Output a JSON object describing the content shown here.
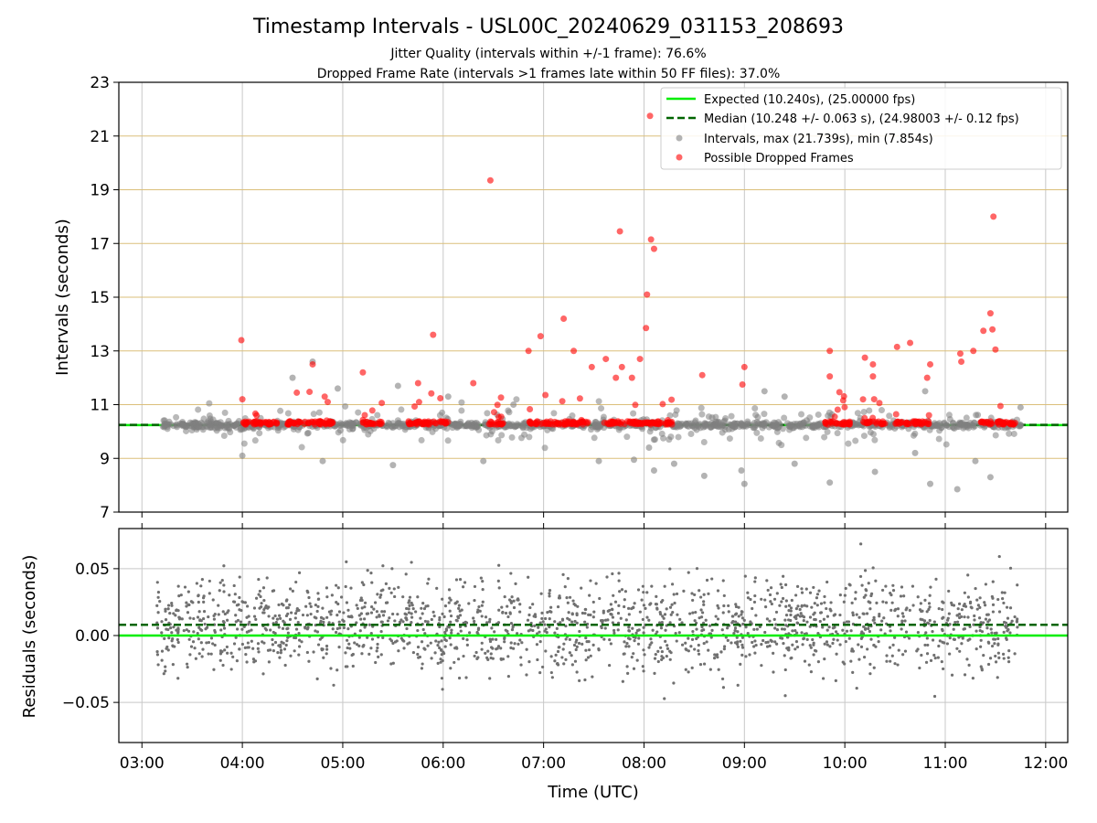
{
  "chart_data": [
    {
      "type": "scatter",
      "title": "Timestamp Intervals - USL00C_20240629_031153_208693",
      "subtitle_lines": [
        "Jitter Quality (intervals within +/-1 frame): 76.6%",
        "Dropped Frame Rate (intervals >1 frames late within 50 FF files): 37.0%"
      ],
      "ylabel": "Intervals (seconds)",
      "ylim": [
        7,
        23
      ],
      "yticks": [
        "7",
        "9",
        "11",
        "13",
        "15",
        "17",
        "19",
        "21",
        "23"
      ],
      "xlim_hours": [
        2.77,
        12.22
      ],
      "xticks": [
        "03:00",
        "04:00",
        "05:00",
        "06:00",
        "07:00",
        "08:00",
        "09:00",
        "10:00",
        "11:00",
        "12:00"
      ],
      "grid": true,
      "legend_position": "top-right",
      "legend": [
        "Expected (10.240s), (25.00000 fps)",
        "Median (10.248 +/- 0.063 s), (24.98003 +/- 0.12 fps)",
        "Intervals, max (21.739s), min (7.854s)",
        "Possible Dropped Frames"
      ],
      "colors": {
        "expected": "#00ee00",
        "median": "#006400",
        "intervals": "#808080",
        "dropped": "#ff0000",
        "hgrid": "#dbbf7a",
        "vgrid": "#c8c8c8"
      },
      "expected_value": 10.24,
      "median_value": 10.248,
      "time_range_hours": [
        3.2,
        11.77
      ],
      "dropped_frames": [
        {
          "x": 3.99,
          "y": 13.4
        },
        {
          "x": 4.0,
          "y": 11.2
        },
        {
          "x": 4.7,
          "y": 12.5
        },
        {
          "x": 4.82,
          "y": 11.3
        },
        {
          "x": 4.85,
          "y": 11.1
        },
        {
          "x": 5.2,
          "y": 12.2
        },
        {
          "x": 5.75,
          "y": 11.8
        },
        {
          "x": 5.9,
          "y": 13.6
        },
        {
          "x": 6.3,
          "y": 11.8
        },
        {
          "x": 6.47,
          "y": 19.35
        },
        {
          "x": 6.85,
          "y": 13.0
        },
        {
          "x": 6.97,
          "y": 13.55
        },
        {
          "x": 7.2,
          "y": 14.2
        },
        {
          "x": 7.3,
          "y": 13.0
        },
        {
          "x": 7.48,
          "y": 12.4
        },
        {
          "x": 7.62,
          "y": 12.7
        },
        {
          "x": 7.72,
          "y": 12.0
        },
        {
          "x": 7.76,
          "y": 17.45
        },
        {
          "x": 7.78,
          "y": 12.4
        },
        {
          "x": 7.88,
          "y": 12.0
        },
        {
          "x": 7.96,
          "y": 12.7
        },
        {
          "x": 8.02,
          "y": 13.85
        },
        {
          "x": 8.03,
          "y": 15.1
        },
        {
          "x": 8.06,
          "y": 21.75
        },
        {
          "x": 8.07,
          "y": 17.15
        },
        {
          "x": 8.1,
          "y": 16.8
        },
        {
          "x": 8.58,
          "y": 12.1
        },
        {
          "x": 8.98,
          "y": 11.75
        },
        {
          "x": 9.0,
          "y": 12.4
        },
        {
          "x": 9.85,
          "y": 13.0
        },
        {
          "x": 9.85,
          "y": 12.05
        },
        {
          "x": 10.2,
          "y": 12.75
        },
        {
          "x": 10.28,
          "y": 12.5
        },
        {
          "x": 10.28,
          "y": 12.05
        },
        {
          "x": 10.52,
          "y": 13.15
        },
        {
          "x": 10.65,
          "y": 13.3
        },
        {
          "x": 10.82,
          "y": 12.0
        },
        {
          "x": 10.85,
          "y": 12.5
        },
        {
          "x": 11.15,
          "y": 12.9
        },
        {
          "x": 11.16,
          "y": 12.6
        },
        {
          "x": 11.28,
          "y": 13.0
        },
        {
          "x": 11.38,
          "y": 13.75
        },
        {
          "x": 11.45,
          "y": 14.4
        },
        {
          "x": 11.47,
          "y": 13.8
        },
        {
          "x": 11.5,
          "y": 13.05
        },
        {
          "x": 11.48,
          "y": 18.0
        },
        {
          "x": 11.55,
          "y": 10.95
        }
      ],
      "outlier_intervals": [
        {
          "x": 4.0,
          "y": 9.1
        },
        {
          "x": 4.5,
          "y": 12.0
        },
        {
          "x": 4.7,
          "y": 12.6
        },
        {
          "x": 4.8,
          "y": 8.9
        },
        {
          "x": 4.95,
          "y": 11.6
        },
        {
          "x": 5.5,
          "y": 8.75
        },
        {
          "x": 5.55,
          "y": 11.7
        },
        {
          "x": 6.05,
          "y": 11.3
        },
        {
          "x": 6.4,
          "y": 8.9
        },
        {
          "x": 6.7,
          "y": 11.0
        },
        {
          "x": 7.55,
          "y": 8.9
        },
        {
          "x": 7.9,
          "y": 8.95
        },
        {
          "x": 8.05,
          "y": 9.4
        },
        {
          "x": 8.1,
          "y": 8.55
        },
        {
          "x": 8.3,
          "y": 8.8
        },
        {
          "x": 8.6,
          "y": 8.35
        },
        {
          "x": 8.97,
          "y": 8.55
        },
        {
          "x": 9.0,
          "y": 8.05
        },
        {
          "x": 9.2,
          "y": 11.5
        },
        {
          "x": 9.4,
          "y": 11.3
        },
        {
          "x": 9.5,
          "y": 8.8
        },
        {
          "x": 9.85,
          "y": 8.1
        },
        {
          "x": 10.3,
          "y": 8.5
        },
        {
          "x": 10.7,
          "y": 9.2
        },
        {
          "x": 10.8,
          "y": 11.5
        },
        {
          "x": 10.85,
          "y": 8.05
        },
        {
          "x": 11.12,
          "y": 7.85
        },
        {
          "x": 11.3,
          "y": 8.9
        },
        {
          "x": 11.45,
          "y": 8.3
        },
        {
          "x": 11.75,
          "y": 10.9
        }
      ]
    },
    {
      "type": "scatter",
      "ylabel": "Residuals (seconds)",
      "xlabel": "Time (UTC)",
      "ylim": [
        -0.08,
        0.08
      ],
      "yticks": [
        "−0.05",
        "0.00",
        "0.05"
      ],
      "xticks": [
        "03:00",
        "04:00",
        "05:00",
        "06:00",
        "07:00",
        "08:00",
        "09:00",
        "10:00",
        "11:00",
        "12:00"
      ],
      "grid": true,
      "expected_residual": 0.0,
      "median_residual": 0.008,
      "residual_spread": [
        -0.08,
        0.08
      ]
    }
  ]
}
